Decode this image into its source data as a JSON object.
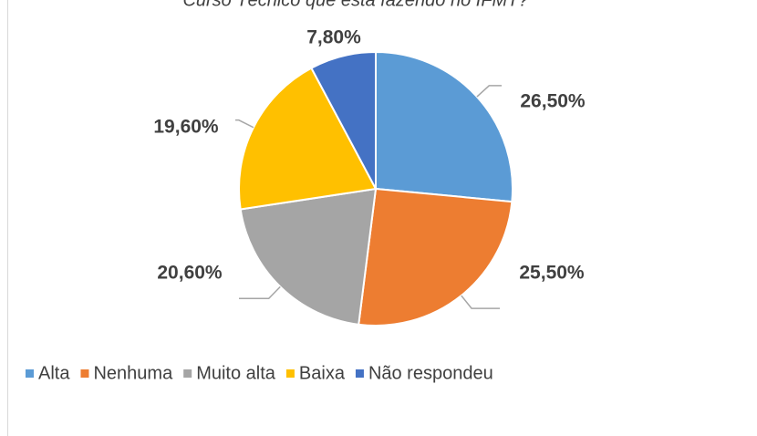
{
  "chart_data": {
    "type": "pie",
    "title": "Curso Técnico que está fazendo no IFMT?",
    "categories": [
      "Alta",
      "Nenhuma",
      "Muito alta",
      "Baixa",
      "Não respondeu"
    ],
    "values": [
      26.5,
      25.5,
      20.6,
      19.6,
      7.8
    ],
    "value_labels": [
      "26,50%",
      "25,50%",
      "20,60%",
      "19,60%",
      "7,80%"
    ],
    "colors": [
      "#5b9bd5",
      "#ed7d31",
      "#a5a5a5",
      "#ffc000",
      "#4472c4"
    ],
    "legend": "bottom"
  }
}
